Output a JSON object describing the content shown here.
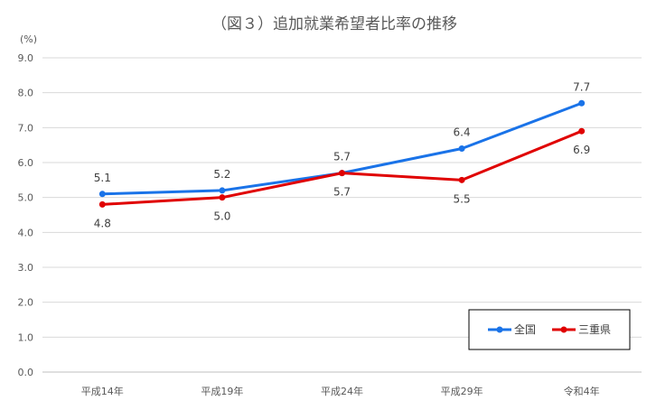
{
  "chart_data": {
    "type": "line",
    "title": "（図３）追加就業希望者比率の推移",
    "ylabel": "(%)",
    "xlabel": "",
    "categories": [
      "平成14年",
      "平成19年",
      "平成24年",
      "平成29年",
      "令和4年"
    ],
    "ylim": [
      0,
      9
    ],
    "yticks": [
      "0.0",
      "1.0",
      "2.0",
      "3.0",
      "4.0",
      "5.0",
      "6.0",
      "7.0",
      "8.0",
      "9.0"
    ],
    "grid": true,
    "legend_position": "bottom-right",
    "series": [
      {
        "name": "全国",
        "color": "#1a73e8",
        "values": [
          5.1,
          5.2,
          5.7,
          6.4,
          7.7
        ],
        "labels": [
          "5.1",
          "5.2",
          "5.7",
          "6.4",
          "7.7"
        ],
        "label_side": [
          "above",
          "above",
          "above",
          "above",
          "above"
        ]
      },
      {
        "name": "三重県",
        "color": "#e00000",
        "values": [
          4.8,
          5.0,
          5.7,
          5.5,
          6.9
        ],
        "labels": [
          "4.8",
          "5.0",
          "5.7",
          "5.5",
          "6.9"
        ],
        "label_side": [
          "below",
          "below",
          "below",
          "below",
          "below"
        ]
      }
    ]
  }
}
